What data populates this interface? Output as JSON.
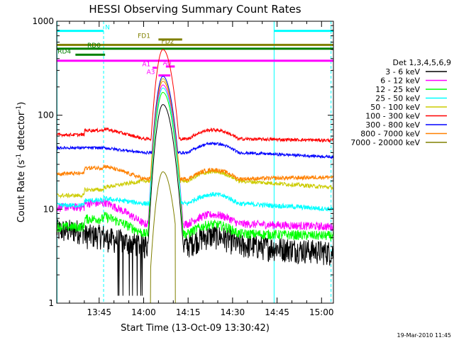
{
  "chart_data": {
    "type": "line",
    "title": "HESSI Observing Summary Count Rates",
    "xlabel": "Start Time (13-Oct-09 13:30:42)",
    "ylabel_main": "Count Rate (s",
    "ylabel_sup1": "-1",
    "ylabel_mid": " detector",
    "ylabel_sup2": "-1",
    "ylabel_end": ")",
    "timestamp": "19-Mar-2010 11:45",
    "x_minutes_from_1330": [
      0.7,
      94.0
    ],
    "y_scale": "log",
    "ylim": [
      1,
      1000
    ],
    "x_ticks": [
      {
        "label": "13:45",
        "minute": 15
      },
      {
        "label": "14:00",
        "minute": 30
      },
      {
        "label": "14:15",
        "minute": 45
      },
      {
        "label": "14:30",
        "minute": 60
      },
      {
        "label": "14:45",
        "minute": 75
      },
      {
        "label": "15:00",
        "minute": 90
      }
    ],
    "y_ticks": [
      {
        "label": "1",
        "value": 1
      },
      {
        "label": "10",
        "value": 10
      },
      {
        "label": "100",
        "value": 100
      },
      {
        "label": "1000",
        "value": 1000
      }
    ],
    "legend_title": "Det 1,3,4,5,6,9",
    "series": [
      {
        "name": "3 - 6 keV",
        "color": "#000000",
        "pre": 6,
        "dip": 5,
        "mid": 4.2,
        "post": 3.5,
        "peak": 130,
        "noise": 0.3,
        "gap_early": true
      },
      {
        "name": "6 - 12 keV",
        "color": "#ff00ff",
        "pre": 10.5,
        "dip": 12,
        "mid": 7,
        "post": 6.5,
        "peak": 210,
        "noise": 0.1,
        "gap_early": false
      },
      {
        "name": "12 - 25 keV",
        "color": "#00ff00",
        "pre": 6.5,
        "dip": 8.5,
        "mid": 5.5,
        "post": 5.2,
        "peak": 175,
        "noise": 0.12,
        "gap_early": false
      },
      {
        "name": "25 - 50 keV",
        "color": "#00ffff",
        "pre": 11,
        "dip": 13,
        "mid": 11.5,
        "post": 10,
        "peak": 195,
        "noise": 0.06,
        "gap_early": false
      },
      {
        "name": "50 - 100 keV",
        "color": "#cccc00",
        "pre": 14,
        "dip": 17,
        "mid": 20,
        "post": 17,
        "peak": 245,
        "noise": 0.05,
        "gap_early": false
      },
      {
        "name": "100 - 300 keV",
        "color": "#ff0000",
        "pre": 62,
        "dip": 72,
        "mid": 56,
        "post": 54,
        "peak": 500,
        "noise": 0.04,
        "gap_early": false
      },
      {
        "name": "300 - 800 keV",
        "color": "#0000ff",
        "pre": 45,
        "dip": 45,
        "mid": 40,
        "post": 36,
        "peak": 260,
        "noise": 0.035,
        "gap_early": false
      },
      {
        "name": "800 - 7000 keV",
        "color": "#ff8000",
        "pre": 24,
        "dip": 29,
        "mid": 21,
        "post": 22,
        "peak": 230,
        "noise": 0.05,
        "gap_early": false
      },
      {
        "name": "7000 - 20000 keV",
        "color": "#808000",
        "pre": 0,
        "dip": 0,
        "mid": 0,
        "post": 0,
        "peak": 25,
        "noise": 0,
        "gap_early": false
      }
    ],
    "flag_bars": [
      {
        "label": "N",
        "color": "#00ffff",
        "y": 790,
        "x0": 0.7,
        "x1": 16.5,
        "label_x": 17
      },
      {
        "label": "",
        "color": "#00ffff",
        "y": 790,
        "x0": 74,
        "x1": 94,
        "label_x": 0
      },
      {
        "label": "FD1",
        "color": "#808000",
        "y": 640,
        "x0": 35,
        "x1": 43,
        "label_x": 28
      },
      {
        "label": "FD2",
        "color": "#808000",
        "y": 560,
        "x0": 0.7,
        "x1": 94,
        "label_x": 36
      },
      {
        "label": "RD0",
        "color": "#008000",
        "y": 510,
        "x0": 0.7,
        "x1": 94,
        "label_x": 11
      },
      {
        "label": "RD4",
        "color": "#008000",
        "y": 440,
        "x0": 7,
        "x1": 17,
        "label_x": 1
      },
      {
        "label": "",
        "color": "#ff00ff",
        "y": 380,
        "x0": 0.7,
        "x1": 94,
        "label_x": 0
      },
      {
        "label": "A1",
        "color": "#ff00ff",
        "y": 320,
        "x0": 33,
        "x1": 34.5,
        "label_x": 29.5
      },
      {
        "label": "A0",
        "color": "#ff00ff",
        "y": 330,
        "x0": 37.5,
        "x1": 40.5,
        "label_x": 36.5
      },
      {
        "label": "A3",
        "color": "#ff00ff",
        "y": 265,
        "x0": 35,
        "x1": 39,
        "label_x": 31
      }
    ],
    "vlines": [
      {
        "minute": 0.8,
        "style": "solid"
      },
      {
        "minute": 16.5,
        "style": "dashed"
      },
      {
        "minute": 74.0,
        "style": "solid"
      },
      {
        "minute": 93.2,
        "style": "dashed"
      }
    ],
    "vline_color": "#00ffff",
    "flare_peak_minute": 36.5
  }
}
